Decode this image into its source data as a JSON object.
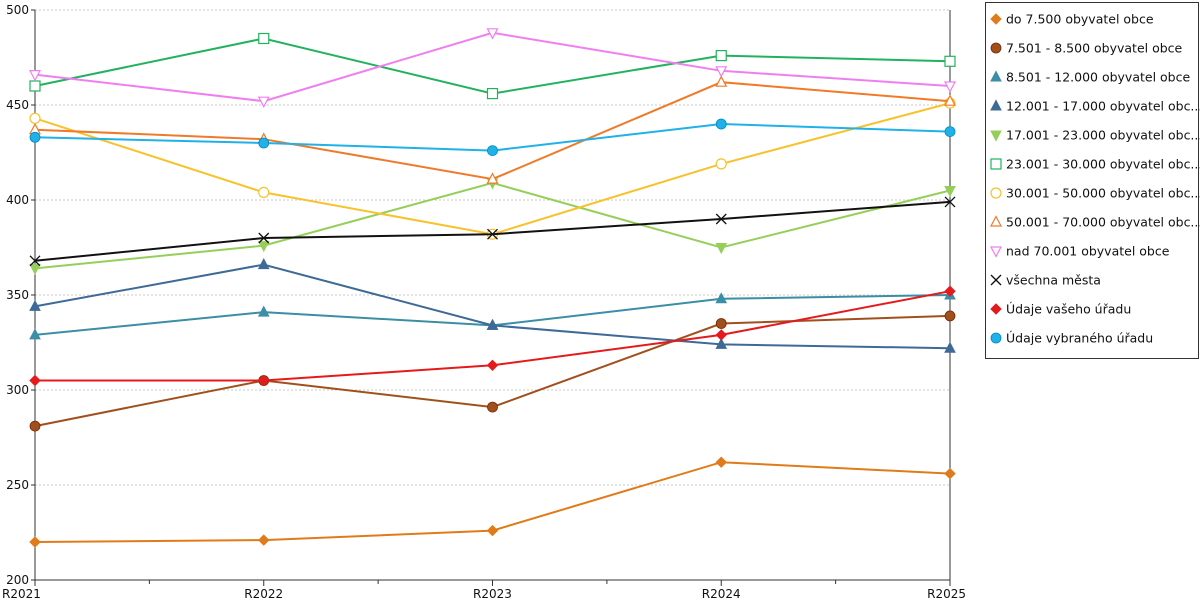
{
  "chart_data": {
    "type": "line",
    "x": [
      "R2021",
      "R2022",
      "R2023",
      "R2024",
      "R2025"
    ],
    "ylim": [
      200,
      500
    ],
    "yticks": [
      200,
      250,
      300,
      350,
      400,
      450,
      500
    ],
    "grid": "horizontal dotted",
    "legend_position": "right",
    "series": [
      {
        "name": "do 7.500 obyvatel obce",
        "color": "#e07b1a",
        "marker": "diamond",
        "values": [
          220,
          221,
          226,
          262,
          256
        ]
      },
      {
        "name": "7.501 - 8.500 obyvatel obce",
        "color": "#a0501c",
        "marker": "circle",
        "values": [
          281,
          305,
          291,
          335,
          339
        ]
      },
      {
        "name": "8.501 - 12.000 obyvatel obce",
        "color": "#3a8ea6",
        "marker": "triangle-up",
        "values": [
          329,
          341,
          334,
          348,
          350
        ]
      },
      {
        "name": "12.001 - 17.000 obyvatel obc...",
        "color": "#3e6a98",
        "marker": "triangle-up",
        "values": [
          344,
          366,
          334,
          324,
          322
        ]
      },
      {
        "name": "17.001 - 23.000 obyvatel obc...",
        "color": "#95cf5a",
        "marker": "triangle-down",
        "values": [
          364,
          376,
          409,
          375,
          405
        ]
      },
      {
        "name": "23.001 - 30.000 obyvatel obc...",
        "color": "#22b25f",
        "marker": "square-open",
        "values": [
          460,
          485,
          456,
          476,
          473
        ]
      },
      {
        "name": "30.001 - 50.000 obyvatel obc...",
        "color": "#f7c22c",
        "marker": "circle-open",
        "values": [
          443,
          404,
          382,
          419,
          451
        ]
      },
      {
        "name": "50.001 - 70.000 obyvatel obc...",
        "color": "#f07a28",
        "marker": "triangle-up-open",
        "values": [
          437,
          432,
          411,
          462,
          452
        ]
      },
      {
        "name": "nad 70.001 obyvatel obce",
        "color": "#f07ef0",
        "marker": "triangle-down-open",
        "values": [
          466,
          452,
          488,
          468,
          460
        ]
      },
      {
        "name": "všechna města",
        "color": "#111111",
        "marker": "x",
        "values": [
          368,
          380,
          382,
          390,
          399
        ]
      },
      {
        "name": "Údaje vašeho úřadu",
        "color": "#e41a1c",
        "marker": "diamond",
        "values": [
          305,
          305,
          313,
          329,
          352
        ]
      },
      {
        "name": "Údaje vybraného úřadu",
        "color": "#1fb1e8",
        "marker": "circle",
        "values": [
          433,
          430,
          426,
          440,
          436
        ]
      }
    ]
  }
}
